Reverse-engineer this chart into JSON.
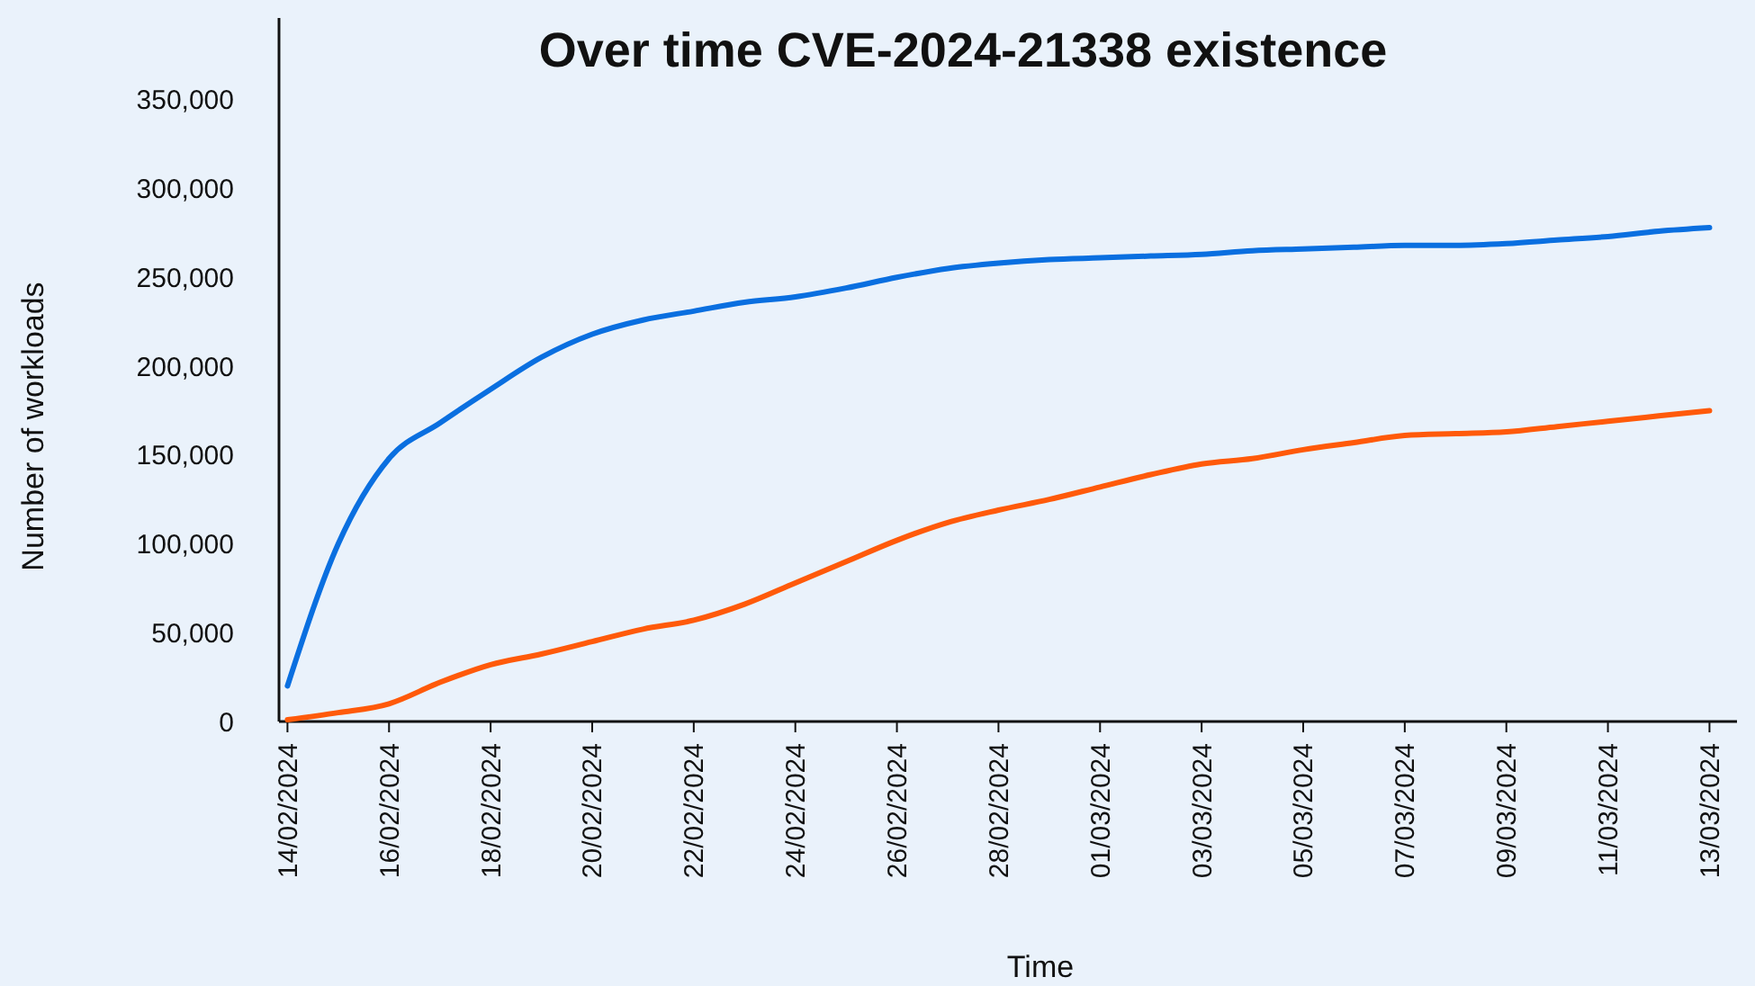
{
  "chart_data": {
    "type": "line",
    "title": "Over time CVE-2024-21338 existence",
    "xlabel": "Time",
    "ylabel": "Number of workloads",
    "x": [
      "2024-02-14",
      "2024-02-15",
      "2024-02-16",
      "2024-02-17",
      "2024-02-18",
      "2024-02-19",
      "2024-02-20",
      "2024-02-21",
      "2024-02-22",
      "2024-02-23",
      "2024-02-24",
      "2024-02-25",
      "2024-02-26",
      "2024-02-27",
      "2024-02-28",
      "2024-02-29",
      "2024-03-01",
      "2024-03-02",
      "2024-03-03",
      "2024-03-04",
      "2024-03-05",
      "2024-03-06",
      "2024-03-07",
      "2024-03-08",
      "2024-03-09",
      "2024-03-10",
      "2024-03-11",
      "2024-03-12",
      "2024-03-13"
    ],
    "series": [
      {
        "color": "#0a6fe0",
        "values": [
          20000,
          100000,
          148000,
          168000,
          187000,
          205000,
          218000,
          226000,
          231000,
          236000,
          239000,
          244000,
          250000,
          255000,
          258000,
          260000,
          261000,
          262000,
          263000,
          265000,
          266000,
          267000,
          268000,
          268000,
          269000,
          271000,
          273000,
          276000,
          278000
        ]
      },
      {
        "color": "#ff5a0a",
        "values": [
          1000,
          5000,
          10000,
          22000,
          32000,
          38000,
          45000,
          52000,
          57000,
          66000,
          78000,
          90000,
          102000,
          112000,
          119000,
          125000,
          132000,
          139000,
          145000,
          148000,
          153000,
          157000,
          161000,
          162000,
          163000,
          166000,
          169000,
          172000,
          175000
        ]
      }
    ],
    "xlim": [
      "2024-02-13T20:00",
      "2024-03-13T13:00"
    ],
    "xticks": [
      {
        "value": "2024-02-14",
        "label": "14/02/2024"
      },
      {
        "value": "2024-02-16",
        "label": "16/02/2024"
      },
      {
        "value": "2024-02-18",
        "label": "18/02/2024"
      },
      {
        "value": "2024-02-20",
        "label": "20/02/2024"
      },
      {
        "value": "2024-02-22",
        "label": "22/02/2024"
      },
      {
        "value": "2024-02-24",
        "label": "24/02/2024"
      },
      {
        "value": "2024-02-26",
        "label": "26/02/2024"
      },
      {
        "value": "2024-02-28",
        "label": "28/02/2024"
      },
      {
        "value": "2024-03-01",
        "label": "01/03/2024"
      },
      {
        "value": "2024-03-03",
        "label": "03/03/2024"
      },
      {
        "value": "2024-03-05",
        "label": "05/03/2024"
      },
      {
        "value": "2024-03-07",
        "label": "07/03/2024"
      },
      {
        "value": "2024-03-09",
        "label": "09/03/2024"
      },
      {
        "value": "2024-03-11",
        "label": "11/03/2024"
      },
      {
        "value": "2024-03-13",
        "label": "13/03/2024"
      }
    ],
    "ylim": [
      0,
      396000
    ],
    "yticks": [
      {
        "value": 0,
        "label": "0"
      },
      {
        "value": 50000,
        "label": "50,000"
      },
      {
        "value": 100000,
        "label": "100,000"
      },
      {
        "value": 150000,
        "label": "150,000"
      },
      {
        "value": 200000,
        "label": "200,000"
      },
      {
        "value": 250000,
        "label": "250,000"
      },
      {
        "value": 300000,
        "label": "300,000"
      },
      {
        "value": 350000,
        "label": "350,000"
      }
    ],
    "grid": false,
    "marker": "none",
    "line_style": "solid"
  }
}
